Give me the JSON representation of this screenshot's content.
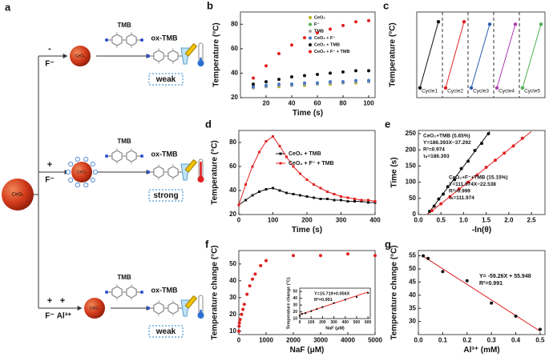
{
  "diagram": {
    "panel": "a",
    "source": "CeO₂",
    "rows": [
      {
        "signs": [
          "-"
        ],
        "reagents": [
          "F⁻"
        ],
        "nanoparticle": "CeO₂",
        "substrate": "TMB",
        "product": "ox-TMB",
        "result": "weak"
      },
      {
        "signs": [
          "+"
        ],
        "reagents": [
          "F⁻"
        ],
        "nanoparticle": "CeO₂",
        "substrate": "TMB",
        "product": "ox-TMB",
        "result": "strong"
      },
      {
        "signs": [
          "+",
          "+"
        ],
        "reagents": [
          "F⁻",
          "Al³⁺"
        ],
        "nanoparticle": "CeO₂",
        "substrate": "TMB",
        "product": "ox-TMB",
        "result": "weak"
      }
    ]
  },
  "chart_data": [
    {
      "type": "scatter",
      "panel": "b",
      "xlabel": "Time (s)",
      "ylabel": "Temperature (°C)",
      "x": [
        10,
        20,
        30,
        40,
        50,
        60,
        70,
        80,
        90,
        100
      ],
      "xlim": [
        0,
        105
      ],
      "xticks": [
        20,
        40,
        60,
        80,
        100
      ],
      "ylim": [
        20,
        90
      ],
      "yticks": [
        20,
        40,
        60,
        80
      ],
      "legend": "center right",
      "series": [
        {
          "name": "CeO₂",
          "color": "#b5b51a",
          "values": [
            28,
            29,
            29,
            30,
            30,
            31,
            31,
            32,
            32,
            33
          ]
        },
        {
          "name": "F⁻",
          "color": "#4caf50",
          "values": [
            29,
            30,
            30,
            31,
            31,
            32,
            32,
            33,
            33,
            34
          ]
        },
        {
          "name": "TMB",
          "color": "#a0a0a0",
          "values": [
            28,
            29,
            30,
            30,
            31,
            31,
            32,
            32,
            33,
            33
          ]
        },
        {
          "name": "CeO₂ + F⁻",
          "color": "#4a78c8",
          "values": [
            29,
            30,
            31,
            31,
            32,
            32,
            33,
            33,
            34,
            34
          ]
        },
        {
          "name": "CeO₂ + TMB",
          "color": "#111111",
          "values": [
            31,
            33,
            35,
            37,
            38,
            39,
            40,
            41,
            42,
            42
          ]
        },
        {
          "name": "CeO₂ + F⁻ + TMB",
          "color": "#e02020",
          "values": [
            36,
            46,
            56,
            63,
            69,
            73,
            76,
            79,
            82,
            83
          ]
        }
      ]
    },
    {
      "type": "cycle",
      "panel": "c",
      "ylabel": "Temperature (°C)",
      "ylim": [
        20,
        90
      ],
      "series": [
        {
          "name": "Cycle1",
          "color": "#111111",
          "values": [
            28,
            82
          ]
        },
        {
          "name": "Cycle2",
          "color": "#e02020",
          "values": [
            28,
            82
          ]
        },
        {
          "name": "Cycle3",
          "color": "#2a5db0",
          "values": [
            28,
            80
          ]
        },
        {
          "name": "Cycle4",
          "color": "#b03ab0",
          "values": [
            28,
            80
          ]
        },
        {
          "name": "Cycle5",
          "color": "#4caf50",
          "values": [
            28,
            80
          ]
        }
      ]
    },
    {
      "type": "line",
      "panel": "d",
      "xlabel": "Time (s)",
      "ylabel": "Temperature (°C)",
      "x": [
        0,
        20,
        40,
        60,
        80,
        100,
        120,
        140,
        160,
        180,
        200,
        220,
        240,
        260,
        280,
        300,
        320,
        340,
        360,
        380,
        400
      ],
      "xlim": [
        0,
        400
      ],
      "xticks": [
        0,
        100,
        200,
        300,
        400
      ],
      "ylim": [
        20,
        90
      ],
      "yticks": [
        20,
        40,
        60,
        80
      ],
      "legend": "upper right",
      "series": [
        {
          "name": "CeO₂ + TMB",
          "color": "#111111",
          "values": [
            28,
            32,
            36,
            39,
            41,
            42,
            40,
            38,
            37,
            36,
            35,
            34,
            33,
            33,
            32,
            32,
            31,
            31,
            31,
            30,
            30
          ]
        },
        {
          "name": "CeO₂ + F⁻ + TMB",
          "color": "#e02020",
          "values": [
            28,
            45,
            60,
            72,
            81,
            85,
            77,
            68,
            60,
            54,
            49,
            45,
            42,
            39,
            37,
            35,
            34,
            33,
            32,
            32,
            31
          ]
        }
      ]
    },
    {
      "type": "scatter",
      "panel": "e",
      "xlabel": "-ln(θ)",
      "ylabel": "Time (s)",
      "xlim": [
        0,
        2.8
      ],
      "xticks": [
        {
          "value": 0,
          "label": "0.0"
        },
        {
          "value": 0.5,
          "label": "0.5"
        },
        {
          "value": 1,
          "label": "1.0"
        },
        {
          "value": 1.5,
          "label": "1.5"
        },
        {
          "value": 2,
          "label": "2.0"
        },
        {
          "value": 2.5,
          "label": "2.5"
        }
      ],
      "ylim": [
        0,
        260
      ],
      "yticks": [
        0,
        50,
        100,
        150,
        200,
        250
      ],
      "series": [
        {
          "color": "#111111",
          "x": [
            0.25,
            0.35,
            0.45,
            0.55,
            0.65,
            0.8,
            0.95,
            1.1,
            1.25,
            1.4,
            1.55
          ],
          "values": [
            10,
            26,
            48,
            63,
            86,
            108,
            142,
            165,
            198,
            220,
            250
          ]
        },
        {
          "color": "#e02020",
          "x": [
            0.3,
            0.5,
            0.7,
            0.9,
            1.1,
            1.3,
            1.5,
            1.7,
            1.9,
            2.1,
            2.3
          ],
          "values": [
            12,
            33,
            55,
            79,
            100,
            122,
            146,
            168,
            190,
            212,
            236
          ]
        }
      ],
      "lines": [
        {
          "color": "#111111",
          "x": [
            0.2,
            1.58
          ],
          "y": [
            0,
            257
          ]
        },
        {
          "color": "#e02020",
          "x": [
            0.2,
            2.5
          ],
          "y": [
            0,
            257
          ]
        }
      ],
      "annotations": [
        {
          "color": "#111111",
          "lines": [
            "CeO₂+TMB (5.65%)",
            "Y=186.393X−37.292",
            "R²=0.974",
            "τₛ=186.393"
          ]
        },
        {
          "color": "#e02020",
          "lines": [
            "CeO₂+F⁻+TMB (15.15%)",
            "Y=111.974X−22.538",
            "R²=0.999",
            "τₛ=111.974"
          ]
        }
      ]
    },
    {
      "type": "scatter",
      "panel": "f",
      "xlabel": "NaF (μM)",
      "ylabel": "Temperature change (°C)",
      "xlim": [
        0,
        5000
      ],
      "xticks": [
        0,
        1000,
        2000,
        3000,
        4000,
        5000
      ],
      "ylim": [
        8,
        58
      ],
      "yticks": [
        10,
        20,
        30,
        40,
        50
      ],
      "series": [
        {
          "color": "#e02020",
          "x": [
            0,
            10,
            20,
            50,
            100,
            150,
            200,
            300,
            400,
            500,
            600,
            800,
            1000,
            2000,
            3000,
            4000,
            5000
          ],
          "values": [
            10,
            13,
            15,
            17,
            20,
            23,
            26,
            32,
            37,
            41,
            44,
            49,
            52,
            55,
            55,
            56,
            55
          ]
        }
      ]
    },
    {
      "type": "scatter",
      "xlabel": "NaF (μM)",
      "ylabel": "Temperature change (°C)",
      "xlim": [
        0,
        620
      ],
      "xticks": [
        0,
        100,
        200,
        300,
        400,
        500,
        600
      ],
      "ylim": [
        10,
        55
      ],
      "yticks": [
        10,
        20,
        30,
        40,
        50
      ],
      "series": [
        {
          "color": "#111111",
          "x": [
            0,
            20,
            50,
            100,
            150,
            200,
            300,
            400,
            500,
            600
          ],
          "values": [
            14,
            17,
            18,
            21,
            24,
            27,
            33,
            38,
            42,
            48
          ]
        }
      ],
      "lines": [
        {
          "color": "#e02020",
          "x": [
            0,
            600
          ],
          "y": [
            15.7,
            49.3
          ]
        }
      ],
      "annotations": [
        {
          "color": "#111111",
          "lines": [
            "Y=15.719+0.056X",
            "R²=0.991"
          ]
        }
      ]
    },
    {
      "type": "scatter",
      "panel": "g",
      "xlabel": "Al³⁺ (mM)",
      "ylabel": "Temperature change (°C)",
      "xlim": [
        0,
        0.52
      ],
      "xticks": [
        {
          "value": 0,
          "label": "0.0"
        },
        0.1,
        0.2,
        0.3,
        0.4,
        0.5
      ],
      "ylim": [
        25,
        57
      ],
      "yticks": [
        30,
        35,
        40,
        45,
        50,
        55
      ],
      "series": [
        {
          "color": "#111111",
          "x": [
            0.02,
            0.04,
            0.1,
            0.2,
            0.3,
            0.4,
            0.5
          ],
          "values": [
            55,
            54,
            49,
            45.5,
            37,
            32,
            27
          ]
        }
      ],
      "lines": [
        {
          "color": "#e02020",
          "x": [
            0.02,
            0.5
          ],
          "y": [
            54.8,
            26.3
          ]
        }
      ],
      "annotations": [
        {
          "color": "#111111",
          "lines": [
            "Y= -59.26X + 55.948",
            "R²=0.991"
          ]
        }
      ]
    }
  ]
}
